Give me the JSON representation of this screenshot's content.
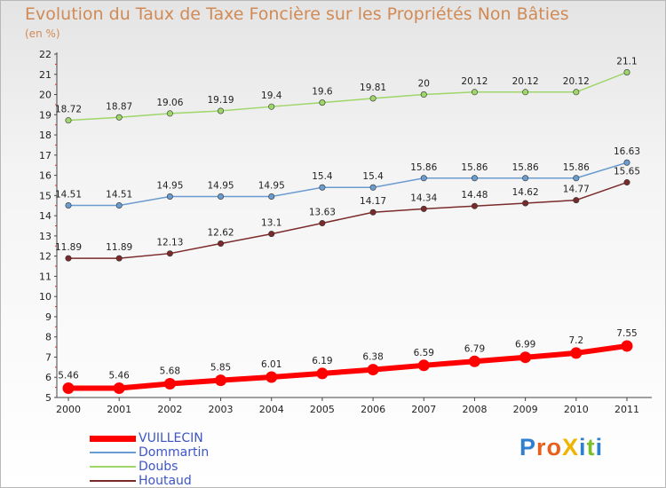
{
  "title": "Evolution du Taux de Taxe Foncière sur les Propriétés Non Bâties",
  "subtitle": "(en %)",
  "logo": {
    "text": "ProXiti",
    "letters": [
      {
        "ch": "P",
        "color": "#2f7fd1"
      },
      {
        "ch": "r",
        "color": "#e8601c"
      },
      {
        "ch": "o",
        "color": "#e8601c"
      },
      {
        "ch": "X",
        "color": "#f0b400"
      },
      {
        "ch": "i",
        "color": "#2f7fd1"
      },
      {
        "ch": "t",
        "color": "#7bbf2a"
      },
      {
        "ch": "i",
        "color": "#2f7fd1"
      }
    ]
  },
  "chart_data": {
    "type": "line",
    "x": [
      "2000",
      "2001",
      "2002",
      "2003",
      "2004",
      "2005",
      "2006",
      "2007",
      "2008",
      "2009",
      "2010",
      "2011"
    ],
    "ylim": [
      5,
      22
    ],
    "yticks": [
      "5",
      "6",
      "7",
      "8",
      "9",
      "10",
      "11",
      "12",
      "13",
      "14",
      "15",
      "16",
      "17",
      "18",
      "19",
      "20",
      "21",
      "22"
    ],
    "grid": false,
    "legend_position": "bottom-left",
    "series": [
      {
        "name": "VUILLECIN",
        "color": "#ff0000",
        "values": [
          5.46,
          5.46,
          5.68,
          5.85,
          6.01,
          6.19,
          6.38,
          6.59,
          6.79,
          6.99,
          7.2,
          7.55
        ],
        "labels": [
          "5.46",
          "5.46",
          "5.68",
          "5.85",
          "6.01",
          "6.19",
          "6.38",
          "6.59",
          "6.79",
          "6.99",
          "7.2",
          "7.55"
        ]
      },
      {
        "name": "Dommartin",
        "color": "#6b9cd0",
        "values": [
          14.51,
          14.51,
          14.95,
          14.95,
          14.95,
          15.4,
          15.4,
          15.86,
          15.86,
          15.86,
          15.86,
          16.63
        ],
        "labels": [
          "14.51",
          "14.51",
          "14.95",
          "14.95",
          "14.95",
          "15.4",
          "15.4",
          "15.86",
          "15.86",
          "15.86",
          "15.86",
          "16.63"
        ]
      },
      {
        "name": "Doubs",
        "color": "#9ed66a",
        "values": [
          18.72,
          18.87,
          19.06,
          19.19,
          19.4,
          19.6,
          19.81,
          20,
          20.12,
          20.12,
          20.12,
          21.1
        ],
        "labels": [
          "18.72",
          "18.87",
          "19.06",
          "19.19",
          "19.4",
          "19.6",
          "19.81",
          "20",
          "20.12",
          "20.12",
          "20.12",
          "21.1"
        ]
      },
      {
        "name": "Houtaud",
        "color": "#7a2a2a",
        "values": [
          11.89,
          11.89,
          12.13,
          12.62,
          13.1,
          13.63,
          14.17,
          14.34,
          14.48,
          14.62,
          14.77,
          15.65
        ],
        "labels": [
          "11.89",
          "11.89",
          "12.13",
          "12.62",
          "13.1",
          "13.63",
          "14.17",
          "14.34",
          "14.48",
          "14.62",
          "14.77",
          "15.65"
        ]
      }
    ]
  }
}
